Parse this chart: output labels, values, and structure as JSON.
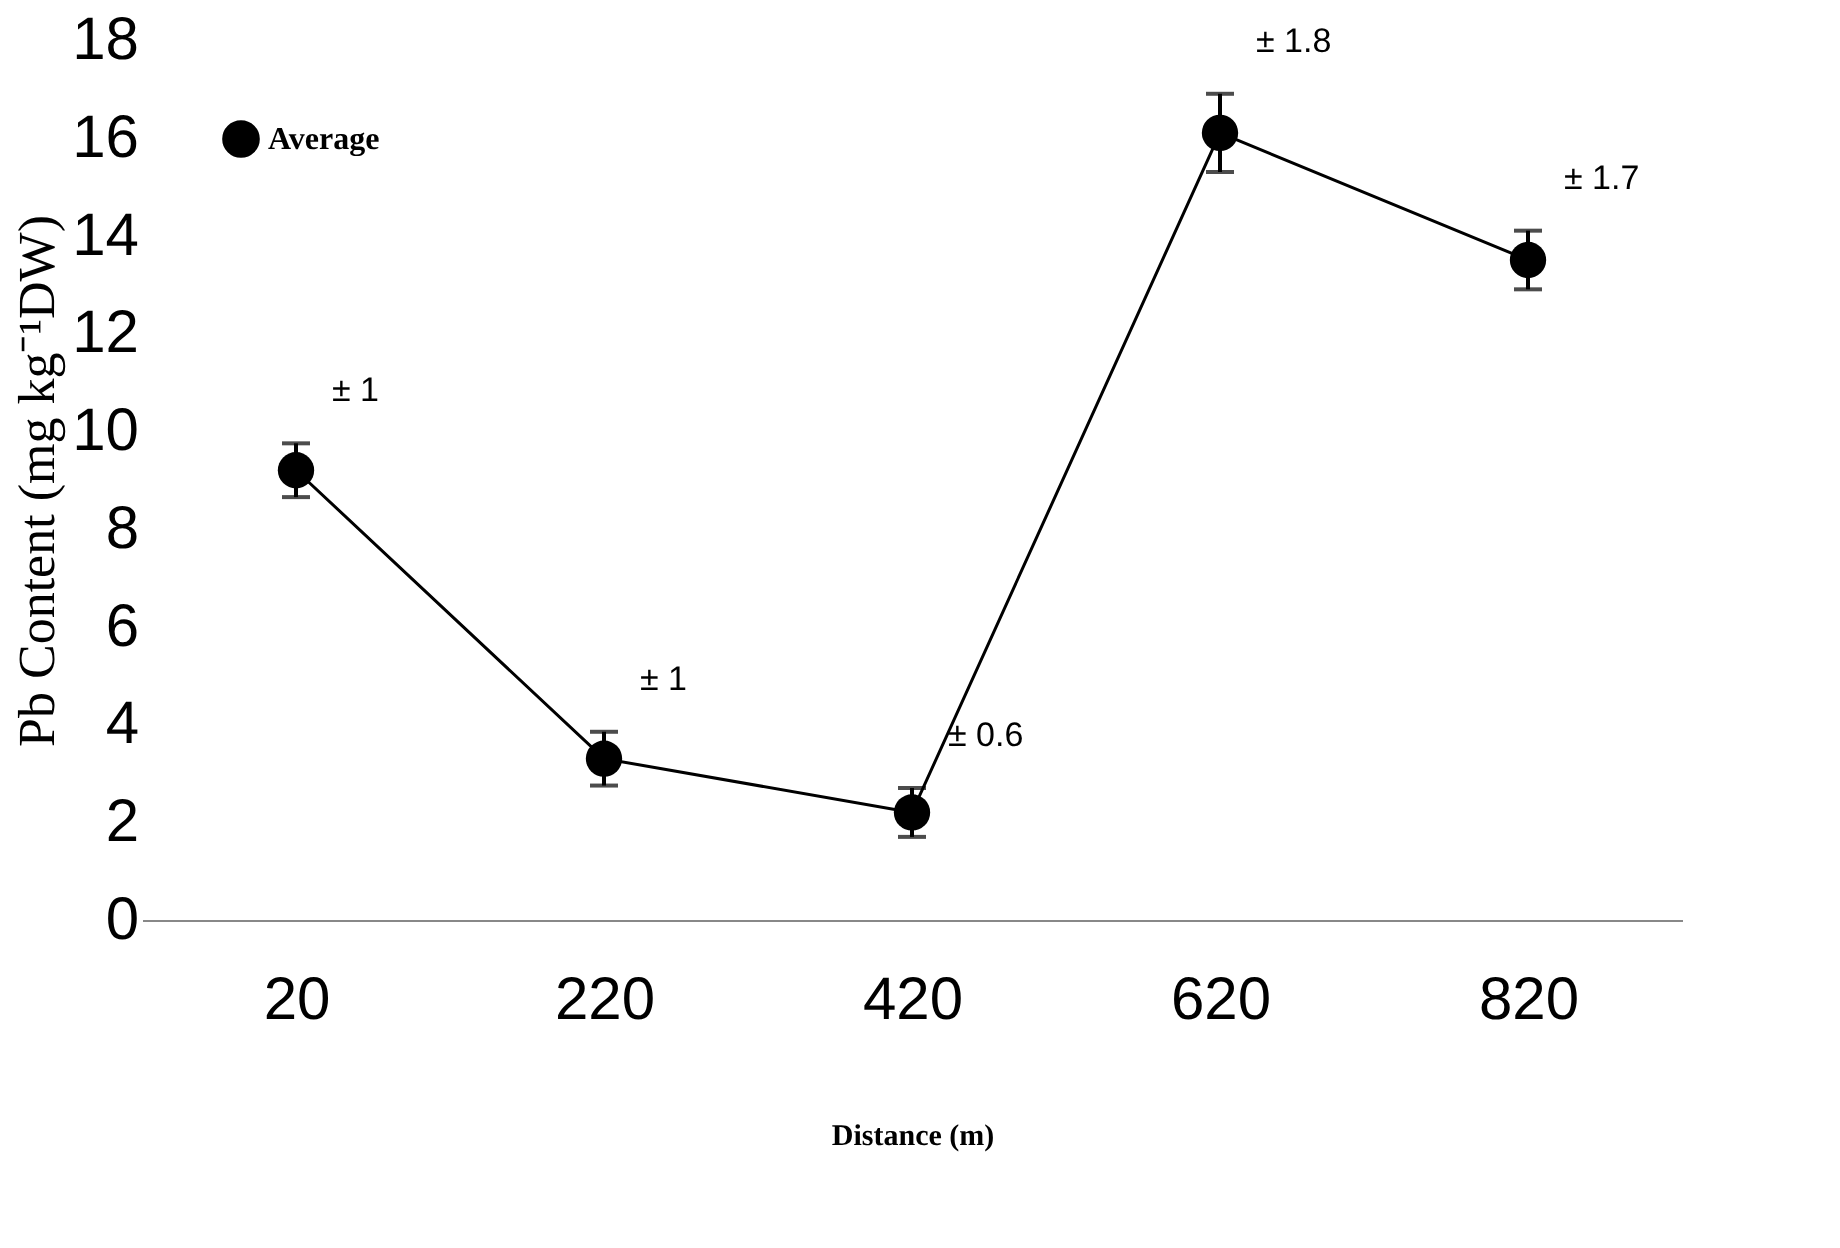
{
  "chart_data": {
    "type": "line",
    "xlabel": "Distance (m)",
    "ylabel": "Pb Content (mg kg⁻¹DW)",
    "categories": [
      "20",
      "220",
      "420",
      "620",
      "820"
    ],
    "series": [
      {
        "name": "Average",
        "color": "#000000",
        "values": [
          9.2,
          3.3,
          2.2,
          16.1,
          13.5
        ],
        "errors": [
          0.55,
          0.55,
          0.5,
          0.8,
          0.6
        ]
      }
    ],
    "ylim": [
      0,
      18
    ],
    "yticks": [
      0,
      2,
      4,
      6,
      8,
      10,
      12,
      14,
      16,
      18
    ],
    "annotations": [
      "± 1",
      "± 1",
      "± 0.6",
      "± 1.8",
      "± 1.7"
    ],
    "grid": false,
    "legend": "top left",
    "marker": "circle",
    "line_style": "solid"
  }
}
